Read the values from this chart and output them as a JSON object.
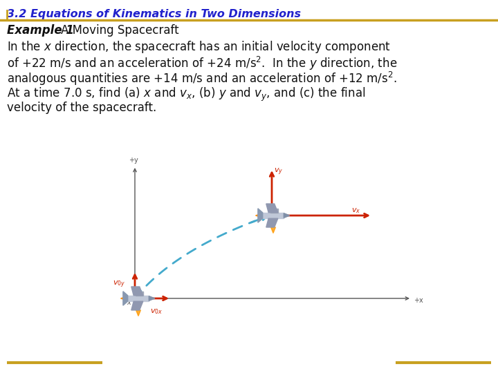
{
  "title": "3.2 Equations of Kinematics in Two Dimensions",
  "title_color": "#2222cc",
  "title_fontsize": 11.5,
  "title_line_color": "#c8a020",
  "example_label": "Example 1",
  "example_rest": "   A Moving Spacecraft",
  "background_color": "#ffffff",
  "bottom_line_color": "#c8a020",
  "arrow_color_red": "#cc2200",
  "dashed_color": "#44aacc",
  "axis_color": "#555555",
  "body_lines": [
    "In the $x$ direction, the spacecraft has an initial velocity component",
    "of +22 m/s and an acceleration of +24 m/s$^2$.  In the $y$ direction, the",
    "analogous quantities are +14 m/s and an acceleration of +12 m/s$^2$.",
    "At a time 7.0 s, find (a) $x$ and $v_x$, (b) $y$ and $v_y$, and (c) the final",
    "velocity of the spacecraft."
  ]
}
